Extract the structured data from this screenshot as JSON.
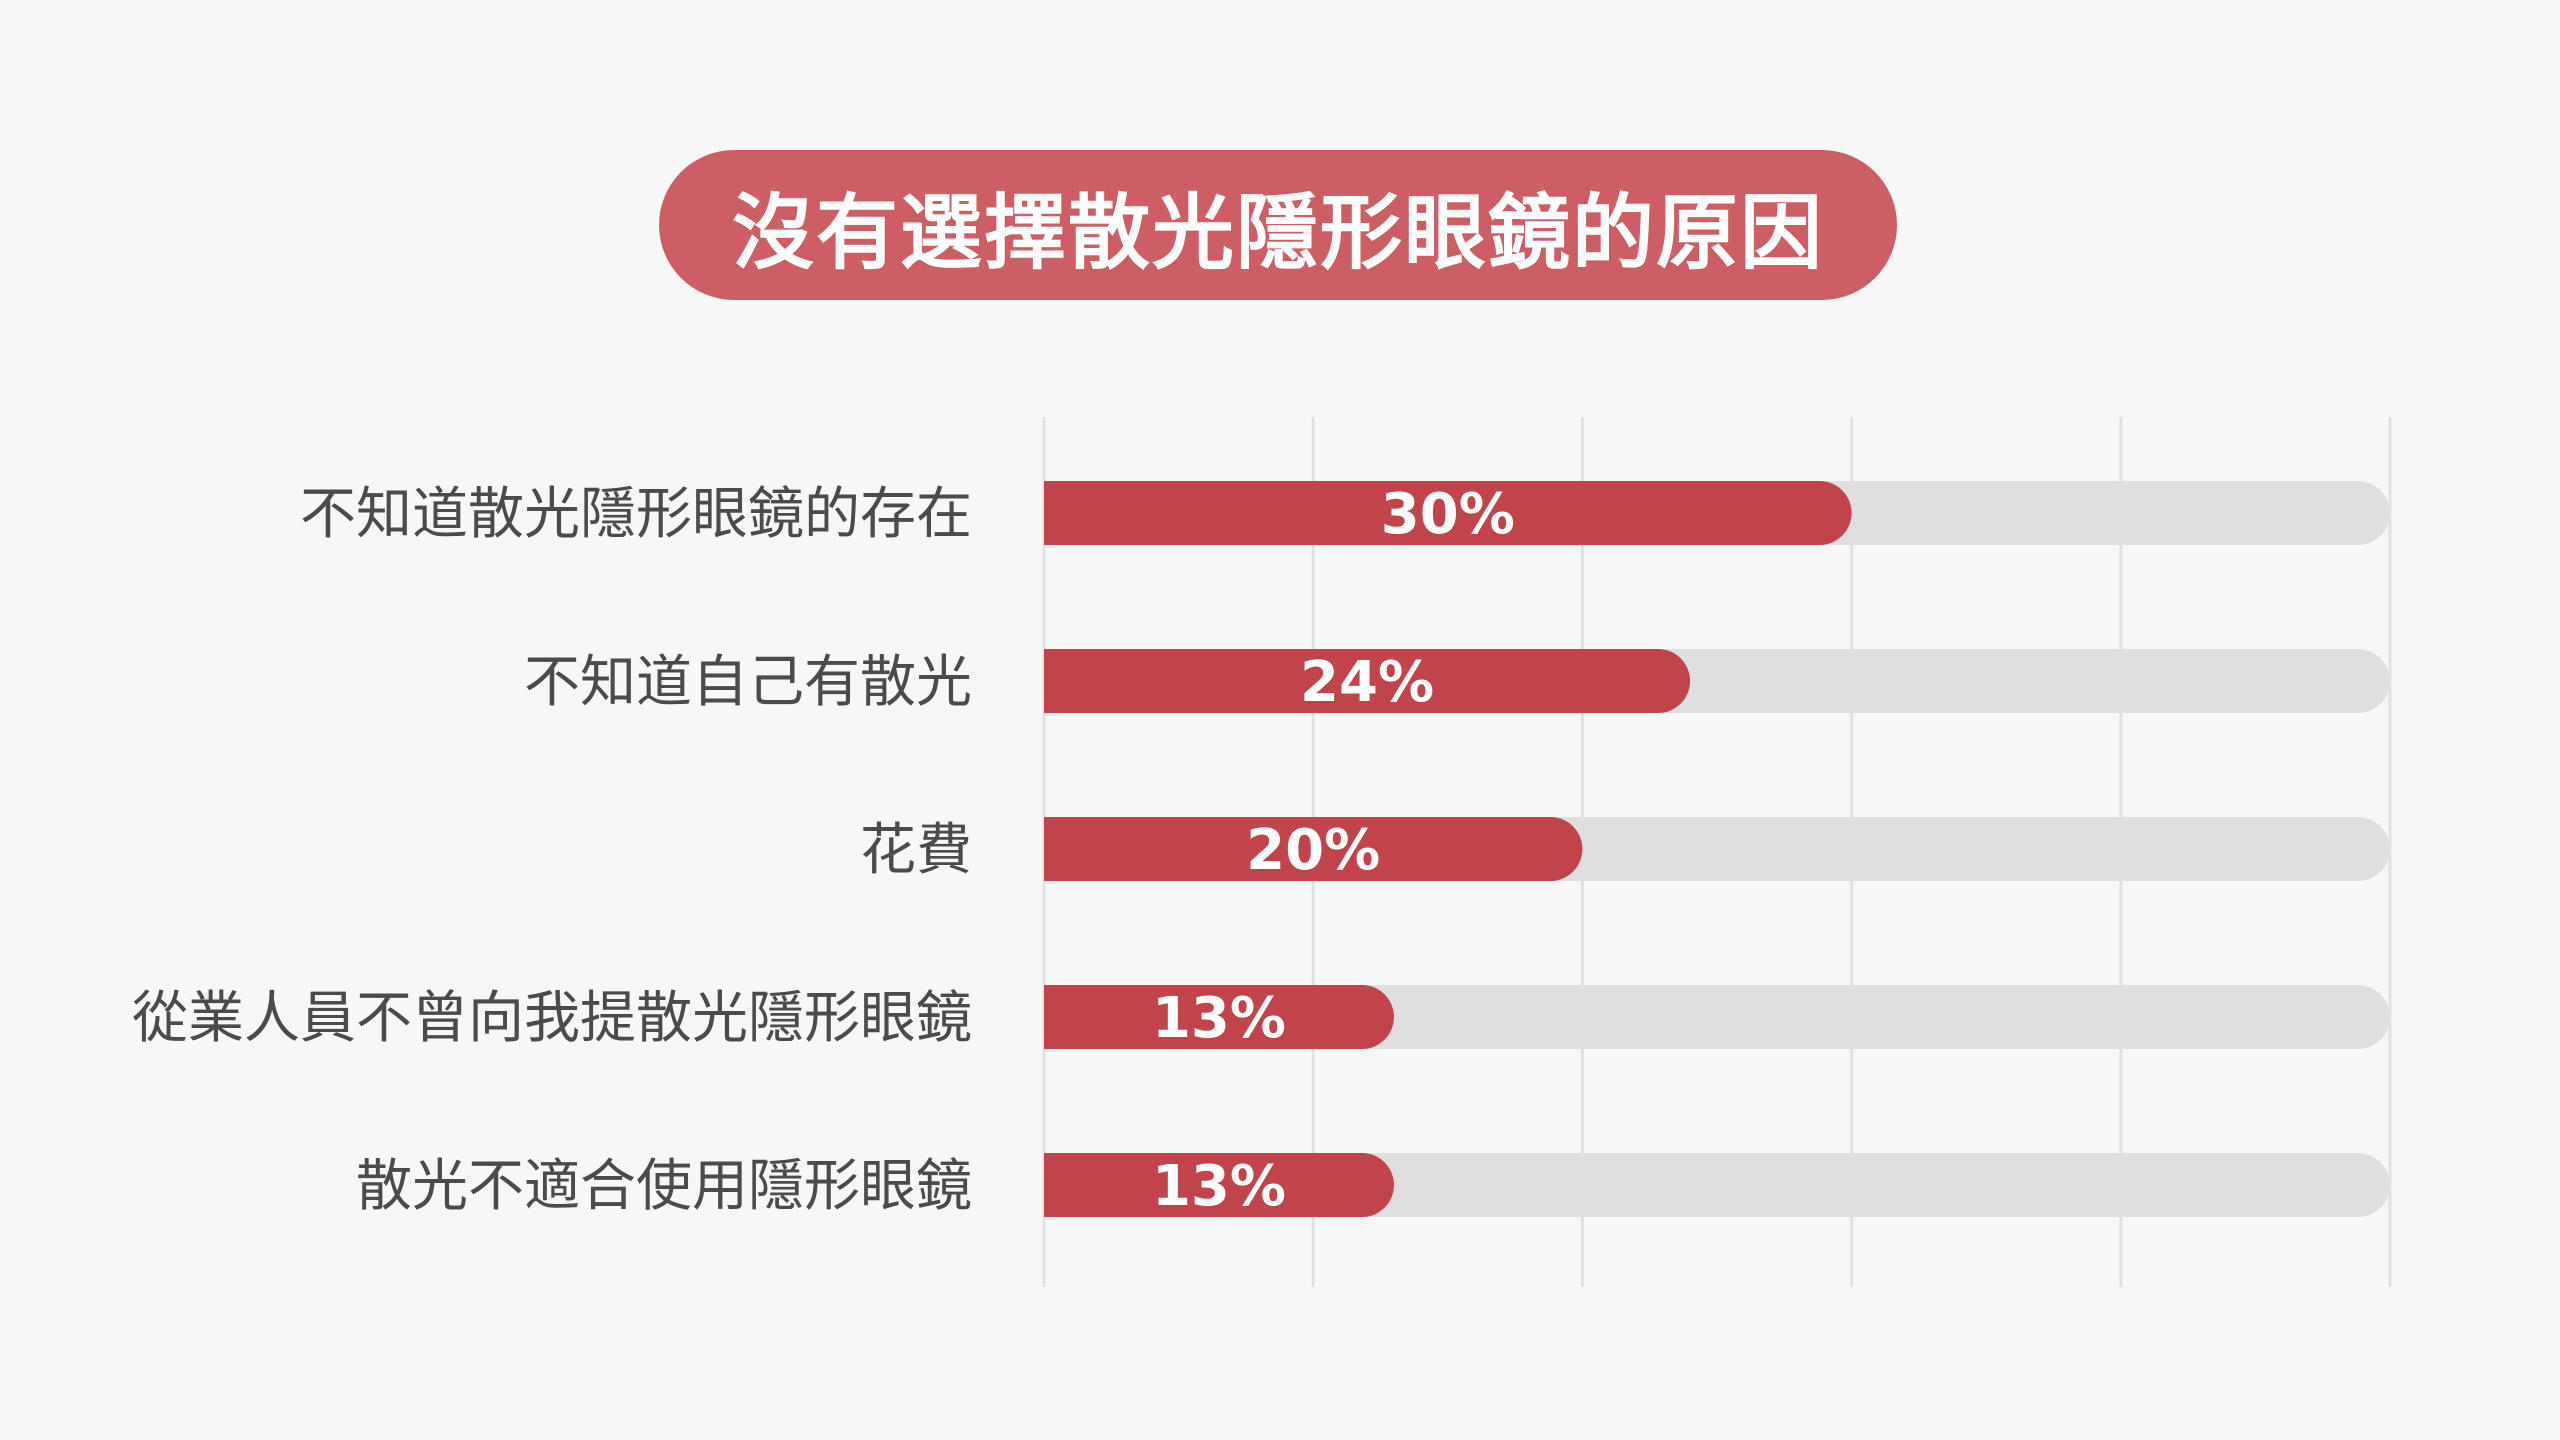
{
  "colors": {
    "background": "#f7f7f7",
    "title_pill": "#cd5e66",
    "bar": "#c1444d",
    "track": "#dfdfdf",
    "grid": "#e1e1e1",
    "label_text": "#4b4b4b",
    "value_text": "#ffffff"
  },
  "chart_data": {
    "type": "bar",
    "orientation": "horizontal",
    "title": "沒有選擇散光隱形眼鏡的原因",
    "xlabel": "",
    "ylabel": "",
    "xlim": [
      0,
      50
    ],
    "grid": true,
    "legend": "none",
    "categories": [
      "不知道散光隱形眼鏡的存在",
      "不知道自己有散光",
      "花費",
      "從業人員不曾向我提散光隱形眼鏡",
      "散光不適合使用隱形眼鏡"
    ],
    "values": [
      30,
      24,
      20,
      13,
      13
    ],
    "value_labels": [
      "30%",
      "24%",
      "20%",
      "13%",
      "13%"
    ]
  }
}
